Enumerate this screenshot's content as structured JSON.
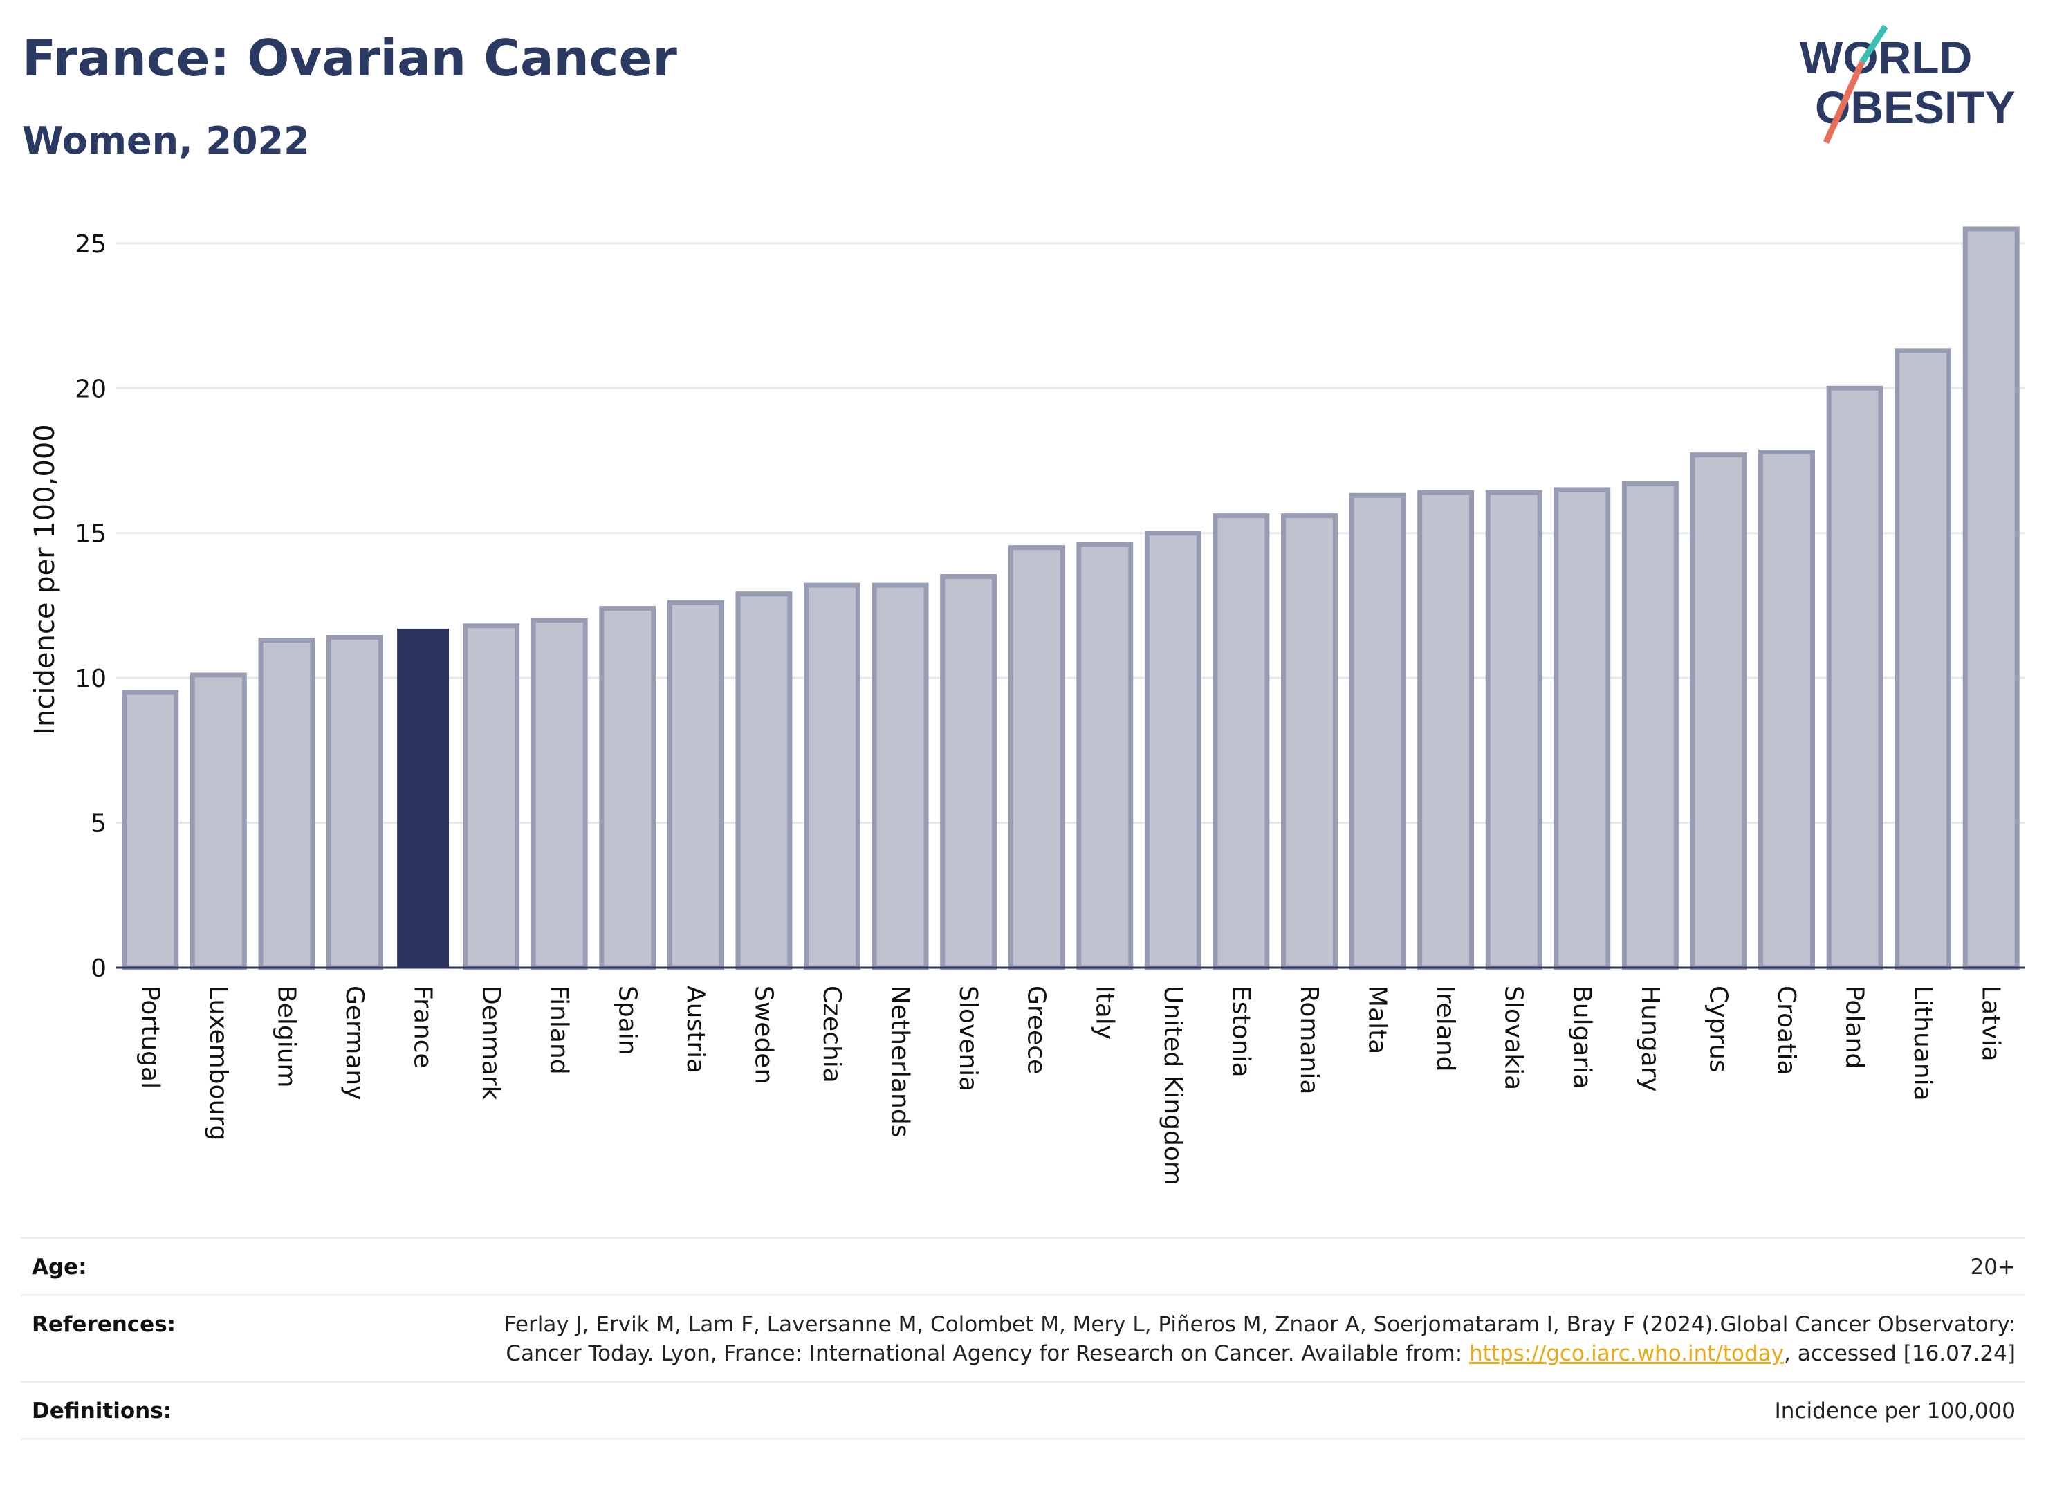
{
  "header": {
    "title": "France: Ovarian Cancer",
    "subtitle": "Women, 2022"
  },
  "logo": {
    "line1": "WORLD",
    "line2": "OBESITY",
    "accent_colors": [
      "#3bbfb0",
      "#e8705a"
    ],
    "text_color": "#2b3a63"
  },
  "chart_data": {
    "type": "bar",
    "ylabel": "Incidence per 100,000",
    "ylim": [
      0,
      26
    ],
    "yticks": [
      0,
      5,
      10,
      15,
      20,
      25
    ],
    "grid": true,
    "highlight": "France",
    "colors": {
      "highlight": "#2b3560",
      "bar_fill": "#c0c3cf",
      "bar_stroke": "#979cb3",
      "grid": "#e6e8ee",
      "axis": "#2b3560"
    },
    "categories": [
      "Portugal",
      "Luxembourg",
      "Belgium",
      "Germany",
      "France",
      "Denmark",
      "Finland",
      "Spain",
      "Austria",
      "Sweden",
      "Czechia",
      "Netherlands",
      "Slovenia",
      "Greece",
      "Italy",
      "United Kingdom",
      "Estonia",
      "Romania",
      "Malta",
      "Ireland",
      "Slovakia",
      "Bulgaria",
      "Hungary",
      "Cyprus",
      "Croatia",
      "Poland",
      "Lithuania",
      "Latvia"
    ],
    "values": [
      9.5,
      10.1,
      11.3,
      11.4,
      11.7,
      11.8,
      12.0,
      12.4,
      12.6,
      12.9,
      13.2,
      13.2,
      13.5,
      14.5,
      14.6,
      15.0,
      15.6,
      15.6,
      16.3,
      16.4,
      16.4,
      16.5,
      16.7,
      17.7,
      17.8,
      20.0,
      21.3,
      25.5
    ]
  },
  "info": {
    "age_label": "Age:",
    "age_value": "20+",
    "references_label": "References:",
    "references_text_1": "Ferlay J, Ervik M, Lam F, Laversanne M, Colombet M, Mery L, Piñeros M, Znaor A, Soerjomataram I, Bray F (2024).Global Cancer Observatory: Cancer Today. Lyon, France: International Agency for Research on Cancer. Available from: ",
    "references_link": "https://gco.iarc.who.int/today",
    "references_text_2": ", accessed [16.07.24]",
    "definitions_label": "Definitions:",
    "definitions_value": "Incidence per 100,000"
  }
}
